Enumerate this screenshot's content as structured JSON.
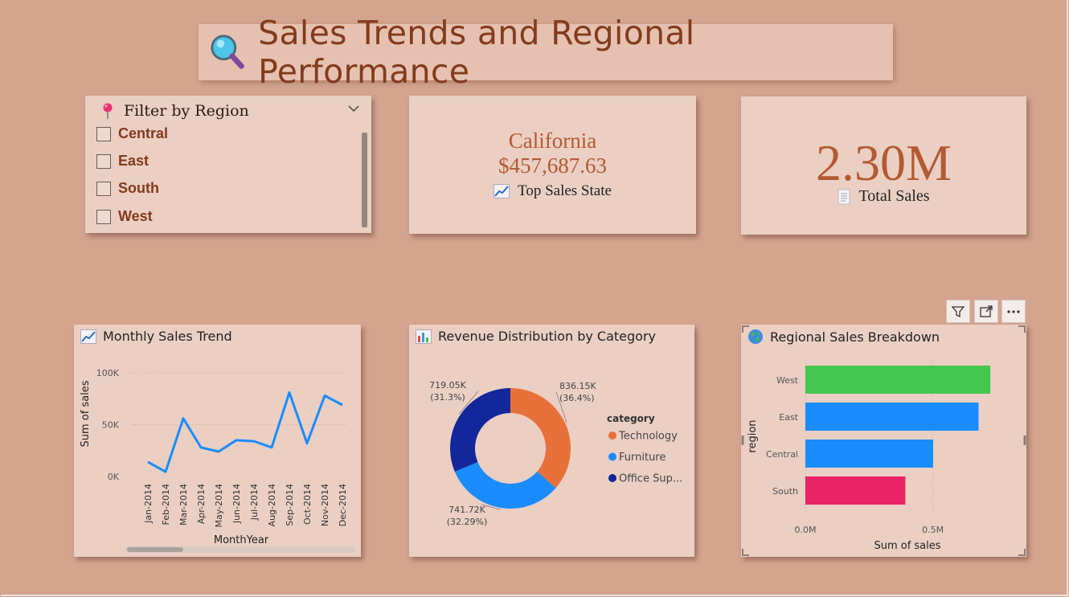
{
  "title": "Sales Trends and Regional Performance",
  "slicer": {
    "label": "Filter by Region",
    "options": [
      "Central",
      "East",
      "South",
      "West"
    ]
  },
  "kpi_top_state": {
    "state": "California",
    "value": "$457,687.63",
    "label": "Top Sales State"
  },
  "kpi_total": {
    "value": "2.30M",
    "label": "Total Sales"
  },
  "colors": {
    "background": "#d4a48f",
    "card": "#ebcfc3",
    "title_text": "#833b1d",
    "kpi_text": "#b35a33",
    "line": "#1a8cff",
    "technology": "#e8703a",
    "furniture": "#1a8cff",
    "office_supplies": "#13279a",
    "west_bar": "#45c64f",
    "east_bar": "#1a8cff",
    "central_bar": "#1a8cff",
    "south_bar": "#ea2366"
  },
  "chart_data": [
    {
      "type": "line",
      "title": "Monthly Sales Trend",
      "xlabel": "MonthYear",
      "ylabel": "Sum of sales",
      "categories": [
        "Jan-2014",
        "Feb-2014",
        "Mar-2014",
        "Apr-2014",
        "May-2014",
        "Jun-2014",
        "Jul-2014",
        "Aug-2014",
        "Sep-2014",
        "Oct-2014",
        "Nov-2014",
        "Dec-2014"
      ],
      "values": [
        14000,
        4500,
        56000,
        28000,
        24000,
        35000,
        34000,
        28000,
        81000,
        32000,
        78000,
        69000
      ],
      "ylim": [
        0,
        100000
      ],
      "yticks": [
        "0K",
        "50K",
        "100K"
      ],
      "grid": true
    },
    {
      "type": "pie",
      "title": "Revenue Distribution by Category",
      "legend_title": "category",
      "legend_position": "right",
      "slices": [
        {
          "name": "Technology",
          "legend_label": "Technology",
          "value": 836.15,
          "label": "836.15K",
          "pct": "(36.4%)"
        },
        {
          "name": "Furniture",
          "legend_label": "Furniture",
          "value": 741.72,
          "label": "741.72K",
          "pct": "(32.29%)"
        },
        {
          "name": "Office Supplies",
          "legend_label": "Office Sup...",
          "value": 719.05,
          "label": "719.05K",
          "pct": "(31.3%)"
        }
      ]
    },
    {
      "type": "bar",
      "orientation": "horizontal",
      "title": "Regional Sales Breakdown",
      "xlabel": "Sum of sales",
      "ylabel": "region",
      "categories": [
        "West",
        "East",
        "Central",
        "South"
      ],
      "values": [
        0.725,
        0.679,
        0.501,
        0.392
      ],
      "xlim": [
        0,
        0.75
      ],
      "xticks": [
        "0.0M",
        "0.5M"
      ]
    }
  ]
}
